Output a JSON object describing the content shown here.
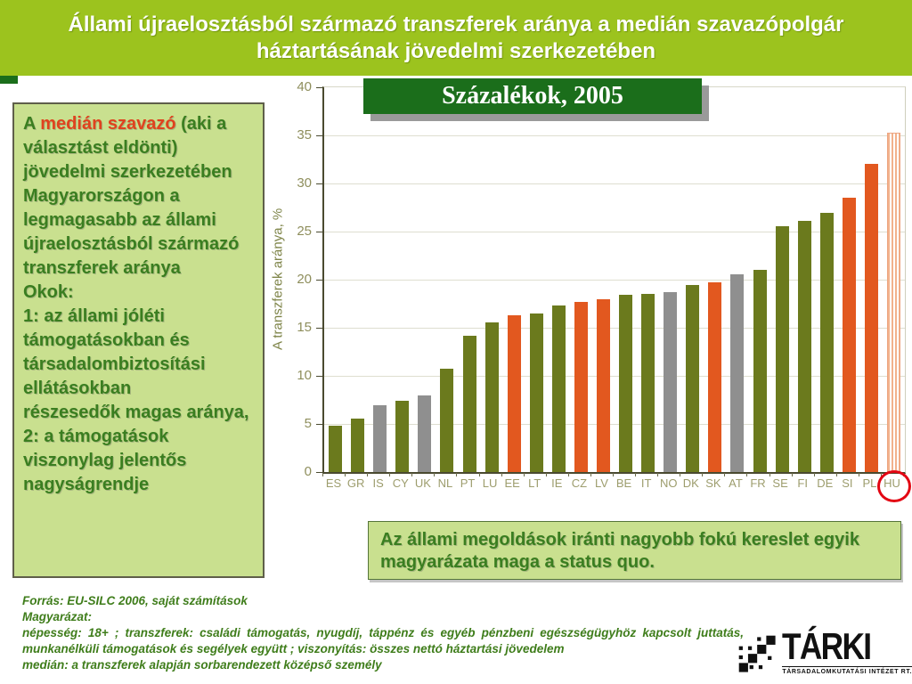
{
  "slide": {
    "title": "Állami újraelosztásból származó transzferek aránya a medián szavazópolgár\nháztartásának jövedelmi szerkezetében",
    "header_bg": "#9cc31e",
    "accent_color": "#1b6e1b"
  },
  "chart_title_badge": "Százalékok, 2005",
  "left_panel": {
    "prefix": "A ",
    "highlight": "medián szavazó",
    "rest": " (aki a választást eldönti) jövedelmi szerkezetében Magyarországon a legmagasabb az állami újraelosztásból származó transzferek aránya\nOkok:\n1: az állami jóléti támogatásokban és társadalombiztosítási ellátásokban\nrészesedők magas aránya,\n2: a támogatások viszonylag jelentős nagyságrendje"
  },
  "callout": "Az állami megoldások iránti nagyobb fokú kereslet egyik magyarázata maga a status quo.",
  "footer": {
    "line1": "Forrás: EU-SILC 2006, saját számítások",
    "line2": "Magyarázat:",
    "para": "népesség: 18+ ; transzferek: családi támogatás, nyugdíj, táppénz és egyéb pénzbeni egészségügyhöz kapcsolt juttatás, munkanélküli támogatások és segélyek együtt ; viszonyítás: összes nettó háztartási jövedelem",
    "line4": "medián: a transzferek alapján sorbarendezett középső személy"
  },
  "logo": {
    "name": "TÁRKI",
    "subtitle": "TÁRSADALOMKUTATÁSI INTÉZET RT."
  },
  "chart_data": {
    "type": "bar",
    "title": "Százalékok, 2005",
    "xlabel": "",
    "ylabel": "A transzferek aránya, %",
    "ylim": [
      0,
      40
    ],
    "yticks": [
      0,
      5,
      10,
      15,
      20,
      25,
      30,
      35,
      40
    ],
    "grid": true,
    "legend": "none",
    "categories": [
      "ES",
      "GR",
      "IS",
      "CY",
      "UK",
      "NL",
      "PT",
      "LU",
      "EE",
      "LT",
      "IE",
      "CZ",
      "LV",
      "BE",
      "IT",
      "NO",
      "DK",
      "SK",
      "AT",
      "FR",
      "SE",
      "FI",
      "DE",
      "SI",
      "PL",
      "HU"
    ],
    "values": [
      4.8,
      5.6,
      6.9,
      7.4,
      8.0,
      10.7,
      14.2,
      15.6,
      16.3,
      16.5,
      17.3,
      17.7,
      18.0,
      18.4,
      18.5,
      18.7,
      19.4,
      19.7,
      20.6,
      21.0,
      25.6,
      26.1,
      26.9,
      28.5,
      32.0,
      35.3
    ],
    "bar_groups": [
      "olive",
      "olive",
      "gray",
      "olive",
      "gray",
      "olive",
      "olive",
      "olive",
      "orange",
      "olive",
      "olive",
      "orange",
      "orange",
      "olive",
      "olive",
      "gray",
      "olive",
      "orange",
      "gray",
      "olive",
      "olive",
      "olive",
      "olive",
      "orange",
      "orange",
      "striped"
    ],
    "bar_colors": {
      "olive": "#6b7a1d",
      "gray": "#8f8f8f",
      "orange": "#e2581f",
      "striped": "#f2b28c"
    },
    "highlighted_category": "HU",
    "highlight_circle_color": "#e30613"
  }
}
